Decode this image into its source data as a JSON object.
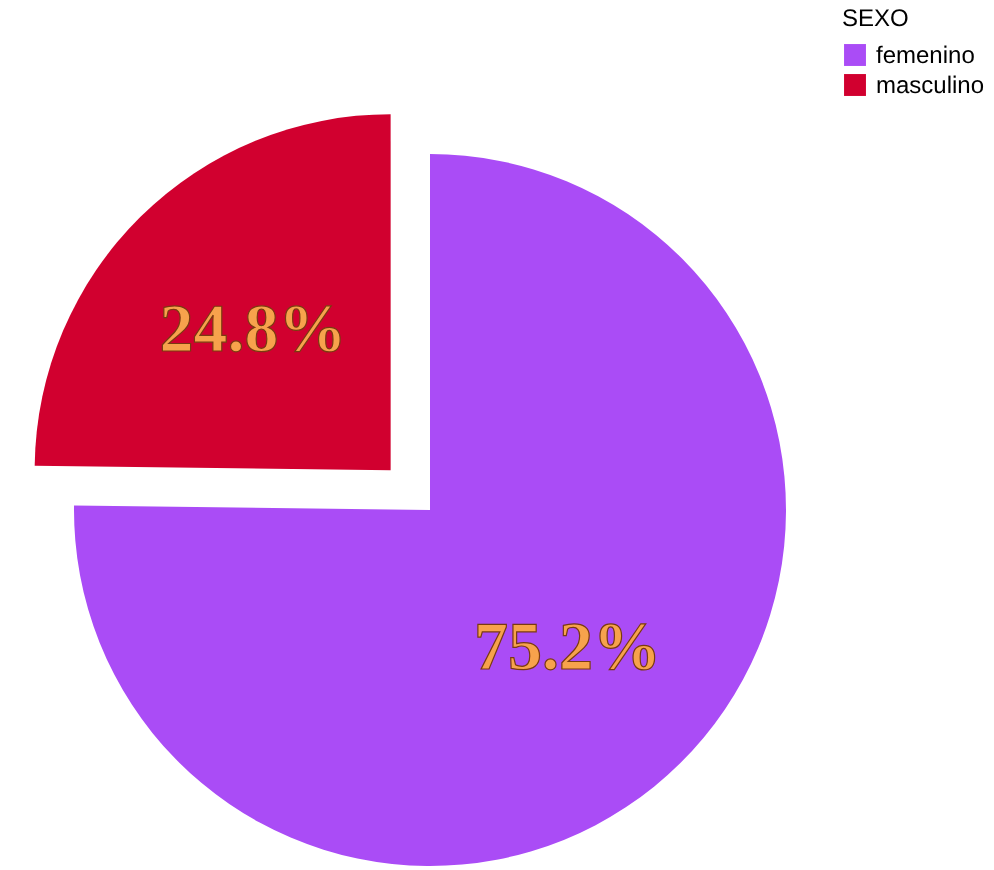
{
  "chart_data": {
    "type": "pie",
    "categories": [
      "femenino",
      "masculino"
    ],
    "values": [
      75.2,
      24.8
    ],
    "colors": [
      "#aa4cf6",
      "#d1002f"
    ],
    "value_labels": [
      "75.2%",
      "24.8%"
    ],
    "legend_title": "SEXO",
    "legend": "top right"
  }
}
